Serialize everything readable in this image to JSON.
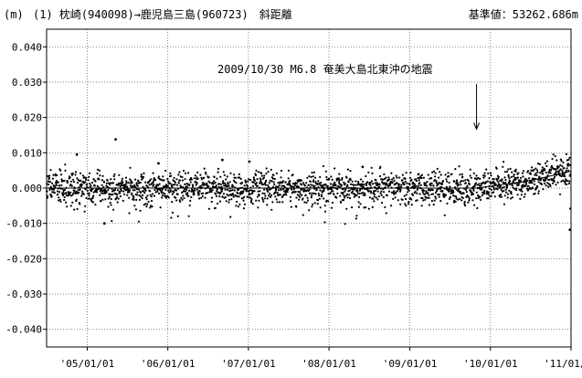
{
  "chart_data": {
    "type": "scatter",
    "y_unit": "(m)",
    "baseline_name": "(1) 枕崎(940098)→鹿児島三島(960723)　斜距離",
    "baseline_length": "基準値：53262.686m",
    "x_range": [
      "2004/07/01",
      "2011/01/01"
    ],
    "y_range": [
      -0.045,
      0.045
    ],
    "y_ticks": [
      0.04,
      0.03,
      0.02,
      0.01,
      0.0,
      -0.01,
      -0.02,
      -0.03,
      -0.04
    ],
    "y_tick_labels": [
      "0.040",
      "0.030",
      "0.020",
      "0.010",
      "0.000",
      "-0.010",
      "-0.020",
      "-0.030",
      "-0.040"
    ],
    "x_ticks": [
      "2005/01/01",
      "2006/01/01",
      "2007/01/01",
      "2008/01/01",
      "2009/01/01",
      "2010/01/01",
      "2011/01/01"
    ],
    "x_tick_labels": [
      "'05/01/01",
      "'06/01/01",
      "'07/01/01",
      "'08/01/01",
      "'09/01/01",
      "'10/01/01",
      "'11/01/01"
    ],
    "grid": true,
    "annotation": {
      "text": "2009/10/30 M6.8 奄美大島北東沖の地震",
      "event_date": "2009/10/30",
      "arrow_from_y": 0.0295,
      "arrow_to_y": 0.0167
    },
    "outliers": [
      {
        "x": "2004/11/15",
        "y": 0.0095
      },
      {
        "x": "2005/05/10",
        "y": 0.0138
      },
      {
        "x": "2005/03/20",
        "y": -0.01
      },
      {
        "x": "2005/11/20",
        "y": 0.007
      },
      {
        "x": "2006/09/05",
        "y": 0.008
      },
      {
        "x": "2007/01/05",
        "y": 0.0075
      },
      {
        "x": "2008/06/01",
        "y": 0.006
      },
      {
        "x": "2010/12/27",
        "y": -0.0118
      }
    ],
    "trend": [
      {
        "x": "2004/07/01",
        "y": 0.0
      },
      {
        "x": "2009/10/30",
        "y": 0.0
      },
      {
        "x": "2010/06/01",
        "y": 0.0018
      },
      {
        "x": "2010/09/01",
        "y": 0.003
      },
      {
        "x": "2011/01/01",
        "y": 0.0048
      }
    ],
    "scatter_spread": 0.0022,
    "point_count": 2150
  }
}
